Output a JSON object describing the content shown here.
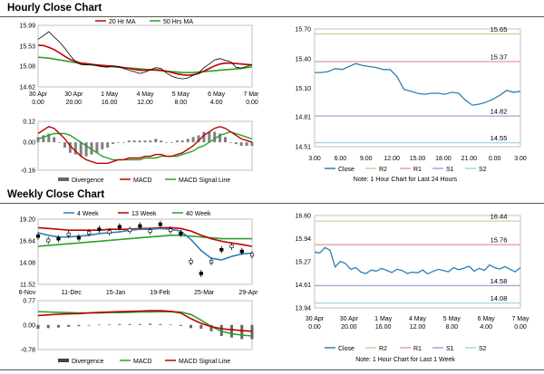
{
  "sections": [
    {
      "title": "Hourly Close Chart"
    },
    {
      "title": "Weekly Close Chart"
    }
  ],
  "colors": {
    "close": "#2c7fb8",
    "ma1": "#c00000",
    "ma2": "#2ca02c",
    "r2": "#c3d69b",
    "r1": "#e6a0a0",
    "s1": "#a6a6d6",
    "s2": "#a6d6e6",
    "bar": "#808080",
    "price": "#000000",
    "macd": "#c00000",
    "signal": "#2ca02c"
  },
  "chart_data": [
    {
      "id": "hourly-price",
      "type": "line",
      "title": "Hourly Close Chart",
      "ylim": [
        14.62,
        15.99
      ],
      "yticks": [
        "15.99",
        "15.53",
        "15.08",
        "14.62"
      ],
      "xticks": [
        "30 Apr\n0.00",
        "30 Apr\n20.00",
        "1 May\n16.00",
        "4 May\n12.00",
        "5 May\n8.00",
        "6 May\n4.00",
        "7 May\n0.00"
      ],
      "legend": [
        "20 Hr MA",
        "50 Hrs MA"
      ],
      "series": [
        {
          "name": "Price",
          "values": [
            15.68,
            15.76,
            15.85,
            15.73,
            15.62,
            15.48,
            15.32,
            15.18,
            15.12,
            15.11,
            15.13,
            15.09,
            15.07,
            15.06,
            15.09,
            15.07,
            15.03,
            14.99,
            14.96,
            14.92,
            14.95,
            15.0,
            15.05,
            15.03,
            14.93,
            14.86,
            14.82,
            14.8,
            14.82,
            14.88,
            14.93,
            15.05,
            15.13,
            15.22,
            15.25,
            15.21,
            15.18,
            15.06,
            15.04,
            15.08,
            15.12
          ]
        },
        {
          "name": "20 Hr MA",
          "values": [
            15.55,
            15.54,
            15.5,
            15.45,
            15.38,
            15.3,
            15.23,
            15.19,
            15.15,
            15.14,
            15.12,
            15.11,
            15.1,
            15.09,
            15.08,
            15.07,
            15.05,
            15.03,
            15.01,
            14.99,
            14.99,
            15.0,
            15.0,
            14.99,
            14.97,
            14.94,
            14.91,
            14.89,
            14.88,
            14.89,
            14.92,
            14.97,
            15.03,
            15.09,
            15.13,
            15.15,
            15.15,
            15.14,
            15.13,
            15.12,
            15.11
          ]
        },
        {
          "name": "50 Hrs MA",
          "values": [
            15.28,
            15.27,
            15.26,
            15.24,
            15.22,
            15.2,
            15.18,
            15.16,
            15.14,
            15.12,
            15.11,
            15.1,
            15.09,
            15.08,
            15.07,
            15.06,
            15.05,
            15.04,
            15.03,
            15.02,
            15.01,
            15.0,
            14.99,
            14.98,
            14.97,
            14.96,
            14.95,
            14.94,
            14.94,
            14.94,
            14.95,
            14.96,
            14.97,
            14.98,
            14.99,
            15.0,
            15.01,
            15.02,
            15.03,
            15.05,
            15.07
          ]
        }
      ]
    },
    {
      "id": "hourly-macd",
      "type": "line",
      "ylim": [
        -0.16,
        0.12
      ],
      "yticks": [
        "0.12",
        "0.00",
        "-0.16"
      ],
      "legend": [
        "Divergence",
        "MACD",
        "MACD Signal Line"
      ],
      "series": [
        {
          "name": "MACD",
          "values": [
            0.05,
            0.07,
            0.09,
            0.08,
            0.05,
            0.02,
            -0.02,
            -0.05,
            -0.08,
            -0.1,
            -0.11,
            -0.12,
            -0.12,
            -0.12,
            -0.11,
            -0.1,
            -0.1,
            -0.09,
            -0.09,
            -0.09,
            -0.08,
            -0.08,
            -0.07,
            -0.07,
            -0.08,
            -0.08,
            -0.07,
            -0.06,
            -0.04,
            -0.02,
            0.01,
            0.04,
            0.06,
            0.08,
            0.09,
            0.08,
            0.06,
            0.04,
            0.02,
            0.01,
            0.0
          ]
        },
        {
          "name": "MACD Signal Line",
          "values": [
            0.02,
            0.03,
            0.04,
            0.05,
            0.05,
            0.05,
            0.04,
            0.02,
            0.0,
            -0.02,
            -0.04,
            -0.06,
            -0.08,
            -0.09,
            -0.1,
            -0.1,
            -0.1,
            -0.1,
            -0.1,
            -0.1,
            -0.09,
            -0.09,
            -0.09,
            -0.08,
            -0.08,
            -0.08,
            -0.08,
            -0.07,
            -0.06,
            -0.05,
            -0.03,
            -0.02,
            0.0,
            0.02,
            0.04,
            0.05,
            0.06,
            0.05,
            0.04,
            0.03,
            0.02
          ]
        },
        {
          "name": "Divergence",
          "values": [
            0.03,
            0.04,
            0.05,
            0.03,
            0.0,
            -0.03,
            -0.06,
            -0.07,
            -0.08,
            -0.08,
            -0.07,
            -0.06,
            -0.04,
            -0.03,
            -0.01,
            0.0,
            0.0,
            0.01,
            0.01,
            0.01,
            0.01,
            0.01,
            0.02,
            0.01,
            0.0,
            0.0,
            0.01,
            0.01,
            0.02,
            0.03,
            0.04,
            0.06,
            0.06,
            0.06,
            0.05,
            0.03,
            0.0,
            -0.01,
            -0.02,
            -0.02,
            -0.02
          ]
        }
      ]
    },
    {
      "id": "hourly-levels",
      "type": "line",
      "ylim": [
        14.51,
        15.7
      ],
      "yticks": [
        "15.70",
        "15.40",
        "15.10",
        "14.81",
        "14.51"
      ],
      "xticks": [
        "3.00",
        "6.00",
        "9.00",
        "12.00",
        "15.00",
        "18.00",
        "21.00",
        "0.00",
        "3.00"
      ],
      "legend": [
        "Close",
        "R2",
        "R1",
        "S1",
        "S2"
      ],
      "note": "Note: 1 Hour Chart for Last 24 Hours",
      "levels": [
        {
          "name": "R2",
          "value": 15.65,
          "label": "15.65"
        },
        {
          "name": "R1",
          "value": 15.37,
          "label": "15.37"
        },
        {
          "name": "S1",
          "value": 14.82,
          "label": "14.82"
        },
        {
          "name": "S2",
          "value": 14.55,
          "label": "14.55"
        }
      ],
      "series": [
        {
          "name": "Close",
          "values": [
            15.26,
            15.26,
            15.27,
            15.3,
            15.29,
            15.32,
            15.35,
            15.33,
            15.32,
            15.31,
            15.29,
            15.29,
            15.22,
            15.09,
            15.07,
            15.05,
            15.04,
            15.05,
            15.05,
            15.04,
            15.06,
            15.05,
            14.98,
            14.93,
            14.94,
            14.96,
            14.99,
            15.03,
            15.08,
            15.06,
            15.07
          ]
        }
      ]
    },
    {
      "id": "weekly-price",
      "type": "line",
      "title": "Weekly Close Chart",
      "ylim": [
        11.52,
        19.2
      ],
      "yticks": [
        "19.20",
        "16.64",
        "14.08",
        "11.52"
      ],
      "xticks": [
        "6-Nov",
        "11-Dec",
        "15-Jan",
        "19-Feb",
        "25-Mar",
        "29-Apr"
      ],
      "legend": [
        "4 Week",
        "13 Week",
        "40 Week"
      ],
      "series": [
        {
          "name": "Price",
          "values": [
            17.2,
            16.7,
            16.9,
            17.4,
            17.0,
            17.6,
            18.0,
            17.7,
            18.3,
            17.9,
            18.4,
            17.8,
            18.6,
            17.9,
            17.5,
            14.2,
            12.8,
            14.2,
            15.6,
            16.0,
            15.4,
            15.0
          ]
        },
        {
          "name": "4 Week",
          "values": [
            17.6,
            17.3,
            17.1,
            17.1,
            17.2,
            17.3,
            17.5,
            17.6,
            17.7,
            17.9,
            18.0,
            18.0,
            18.1,
            18.0,
            17.8,
            16.8,
            15.5,
            14.6,
            14.4,
            14.8,
            15.1,
            15.2
          ]
        },
        {
          "name": "13 Week",
          "values": [
            18.2,
            18.1,
            18.0,
            17.9,
            17.9,
            17.9,
            17.9,
            18.0,
            18.0,
            18.0,
            18.1,
            18.1,
            18.2,
            18.2,
            18.1,
            17.8,
            17.3,
            16.9,
            16.6,
            16.4,
            16.2,
            16.0
          ]
        },
        {
          "name": "40 Week",
          "values": [
            16.0,
            16.1,
            16.2,
            16.3,
            16.4,
            16.5,
            16.6,
            16.7,
            16.8,
            16.9,
            17.0,
            17.1,
            17.2,
            17.3,
            17.3,
            17.2,
            17.1,
            17.0,
            16.9,
            16.9,
            16.9,
            16.9
          ]
        }
      ]
    },
    {
      "id": "weekly-macd",
      "type": "line",
      "ylim": [
        -0.78,
        0.77
      ],
      "yticks": [
        "0.77",
        "0.00",
        "-0.78"
      ],
      "legend": [
        "Divergence",
        "MACD",
        "MACD Signal Line"
      ],
      "series": [
        {
          "name": "MACD",
          "values": [
            0.3,
            0.32,
            0.34,
            0.35,
            0.36,
            0.38,
            0.4,
            0.41,
            0.42,
            0.43,
            0.44,
            0.45,
            0.45,
            0.43,
            0.38,
            0.2,
            0.05,
            -0.05,
            -0.12,
            -0.15,
            -0.18,
            -0.2
          ]
        },
        {
          "name": "MACD Signal Line",
          "values": [
            0.42,
            0.41,
            0.4,
            0.39,
            0.38,
            0.38,
            0.38,
            0.39,
            0.39,
            0.4,
            0.41,
            0.41,
            0.42,
            0.42,
            0.41,
            0.33,
            0.15,
            -0.05,
            -0.2,
            -0.28,
            -0.32,
            -0.35
          ]
        },
        {
          "name": "Divergence",
          "values": [
            -0.12,
            -0.1,
            -0.08,
            -0.06,
            -0.04,
            -0.02,
            0.01,
            0.02,
            0.03,
            0.03,
            0.03,
            0.04,
            0.03,
            0.01,
            -0.03,
            -0.1,
            -0.12,
            -0.2,
            -0.35,
            -0.4,
            -0.45,
            -0.45
          ]
        }
      ]
    },
    {
      "id": "weekly-levels",
      "type": "line",
      "ylim": [
        13.94,
        16.6
      ],
      "yticks": [
        "16.60",
        "15.94",
        "15.27",
        "14.61",
        "13.94"
      ],
      "xticks": [
        "30 Apr\n0.00",
        "30 Apr\n20.00",
        "1 May\n16.00",
        "4 May\n12.00",
        "5 May\n8.00",
        "6 May\n4.00",
        "7 May\n0.00"
      ],
      "legend": [
        "Close",
        "R2",
        "R1",
        "S1",
        "S2"
      ],
      "note": "Note: 1 Hour Chart for Last 1 Week",
      "levels": [
        {
          "name": "R2",
          "value": 16.44,
          "label": "16.44"
        },
        {
          "name": "R1",
          "value": 15.76,
          "label": "15.76"
        },
        {
          "name": "S1",
          "value": 14.58,
          "label": "14.58"
        },
        {
          "name": "S2",
          "value": 14.08,
          "label": "14.08"
        }
      ],
      "series": [
        {
          "name": "Close",
          "values": [
            15.55,
            15.52,
            15.68,
            15.6,
            15.12,
            15.28,
            15.22,
            15.05,
            15.1,
            14.97,
            14.93,
            15.03,
            15.0,
            15.08,
            15.02,
            14.96,
            15.05,
            15.02,
            14.93,
            14.97,
            14.95,
            15.03,
            14.92,
            14.99,
            15.05,
            15.02,
            14.98,
            15.1,
            15.04,
            15.08,
            15.14,
            15.0,
            15.08,
            15.02,
            15.18,
            15.1,
            15.06,
            15.13,
            15.05,
            14.98,
            15.1
          ]
        }
      ]
    }
  ]
}
